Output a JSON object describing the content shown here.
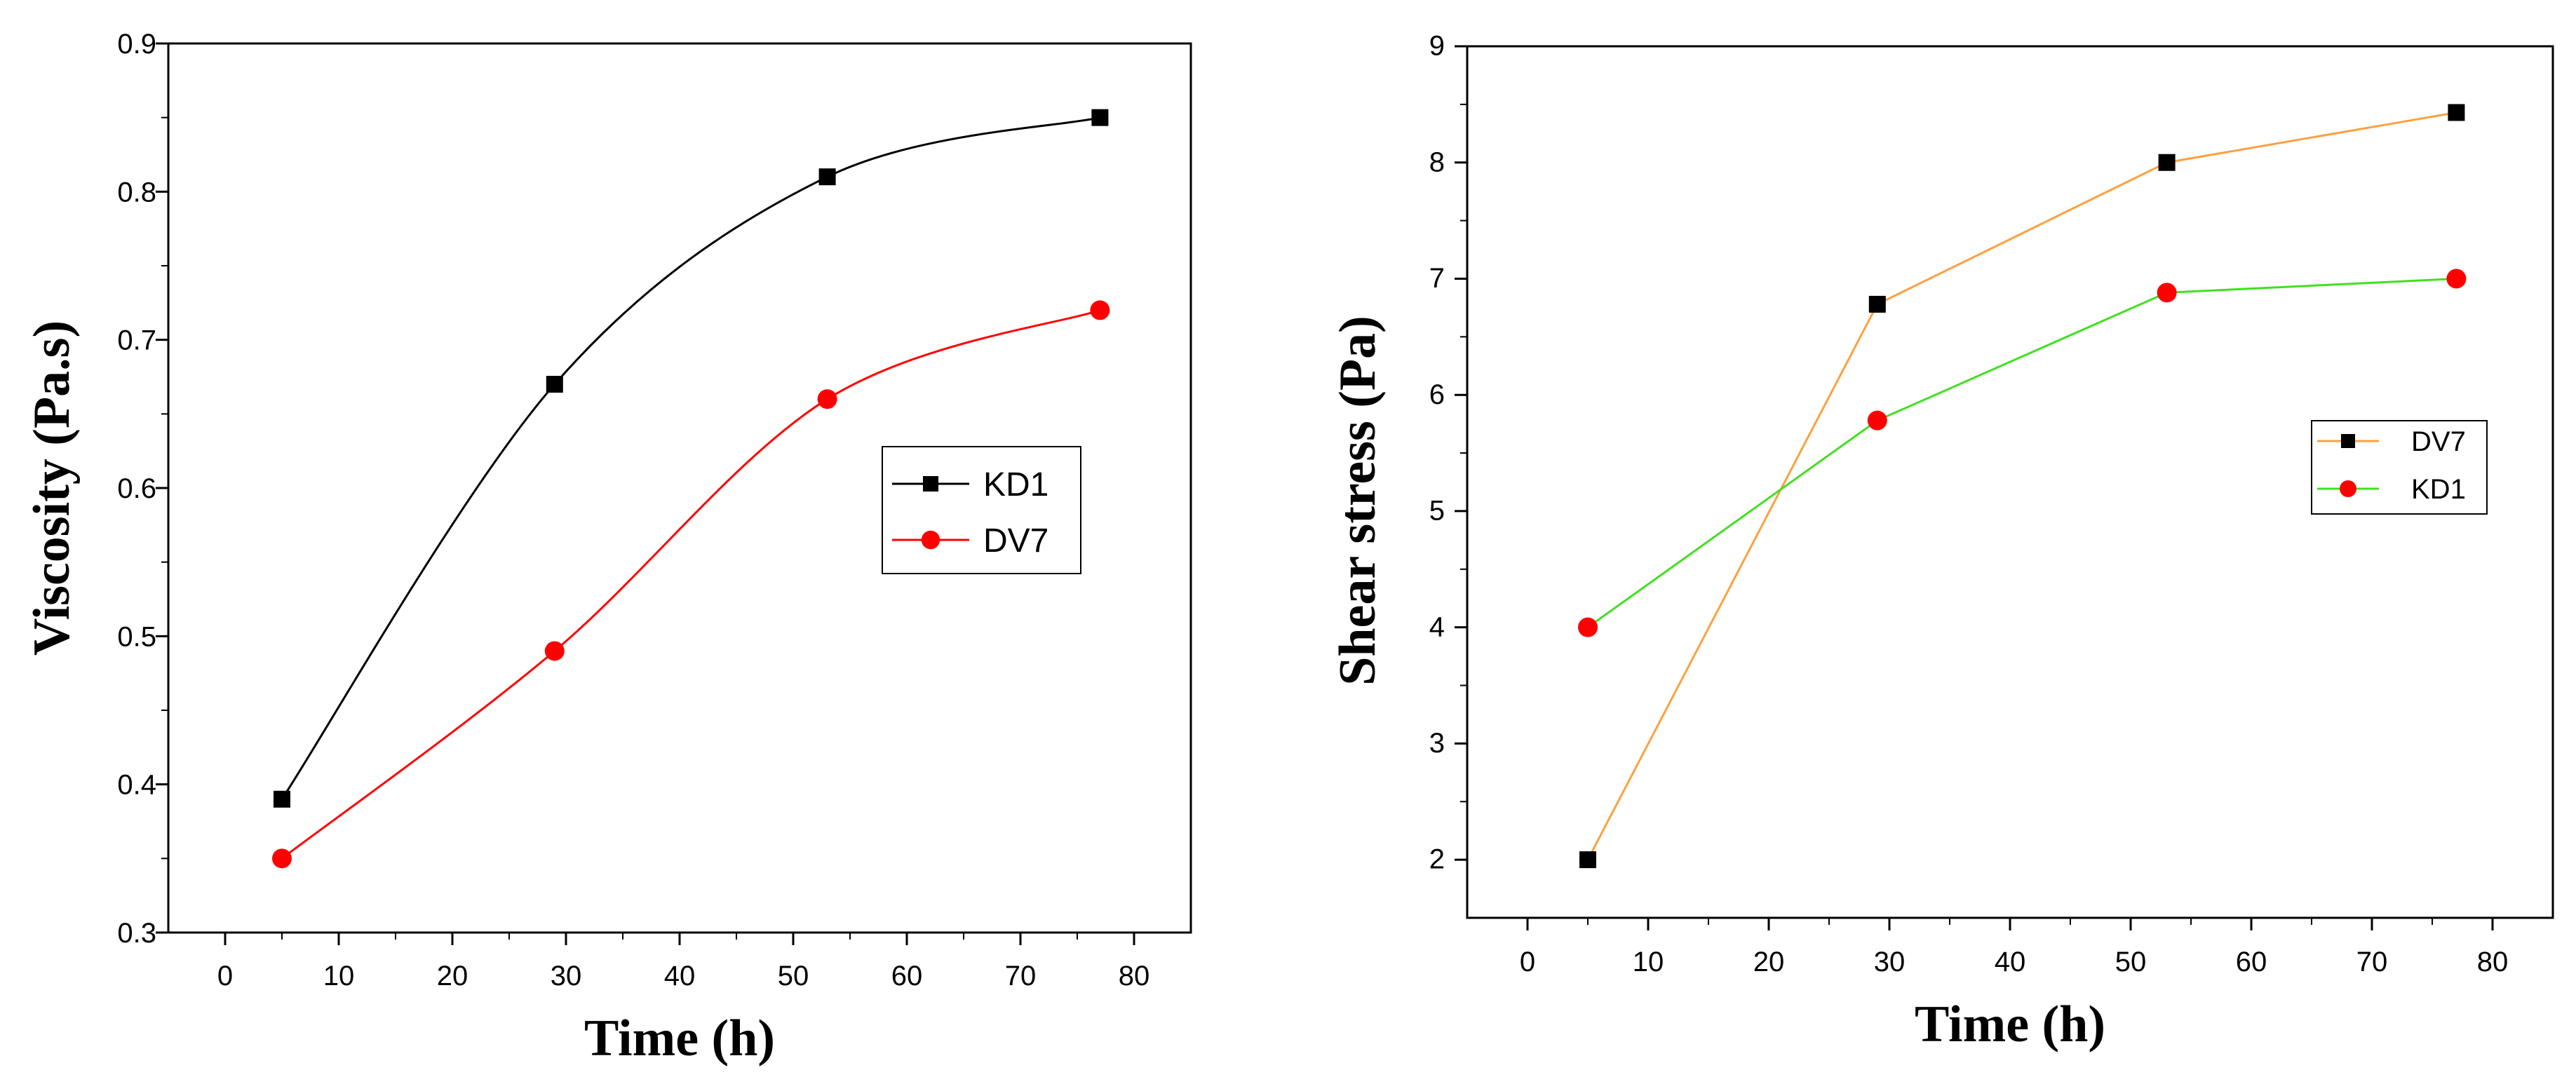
{
  "chart_data": [
    {
      "type": "line",
      "title": "",
      "xlabel": "Time (h)",
      "ylabel": "Viscosity (Pa.s)",
      "xlim": [
        -5,
        85
      ],
      "ylim": [
        0.3,
        0.9
      ],
      "xticks": [
        0,
        10,
        20,
        30,
        40,
        50,
        60,
        70,
        80
      ],
      "yticks": [
        0.3,
        0.4,
        0.5,
        0.6,
        0.7,
        0.8,
        0.9
      ],
      "x": [
        5,
        29,
        53,
        77
      ],
      "smooth": true,
      "legend_position": "middle-right",
      "series": [
        {
          "name": "KD1",
          "color": "#000000",
          "marker": "square",
          "values": [
            0.39,
            0.67,
            0.81,
            0.85
          ]
        },
        {
          "name": "DV7",
          "color": "#ff0000",
          "marker": "circle",
          "values": [
            0.35,
            0.49,
            0.66,
            0.72
          ]
        }
      ]
    },
    {
      "type": "line",
      "title": "",
      "xlabel": "Time (h)",
      "ylabel": "Shear stress (Pa)",
      "xlim": [
        -5,
        85
      ],
      "ylim": [
        1.5,
        9
      ],
      "xticks": [
        0,
        10,
        20,
        30,
        40,
        50,
        60,
        70,
        80
      ],
      "yticks": [
        2,
        3,
        4,
        5,
        6,
        7,
        8,
        9
      ],
      "x": [
        5,
        29,
        53,
        77
      ],
      "smooth": false,
      "legend_position": "middle-right",
      "series": [
        {
          "name": "DV7",
          "color": "#ffa040",
          "marker": "square",
          "marker_color": "#000000",
          "values": [
            2.0,
            6.78,
            8.0,
            8.43
          ]
        },
        {
          "name": "KD1",
          "color": "#40e020",
          "marker": "circle",
          "marker_color": "#ff0000",
          "values": [
            4.0,
            5.78,
            6.88,
            7.0
          ]
        }
      ]
    }
  ]
}
